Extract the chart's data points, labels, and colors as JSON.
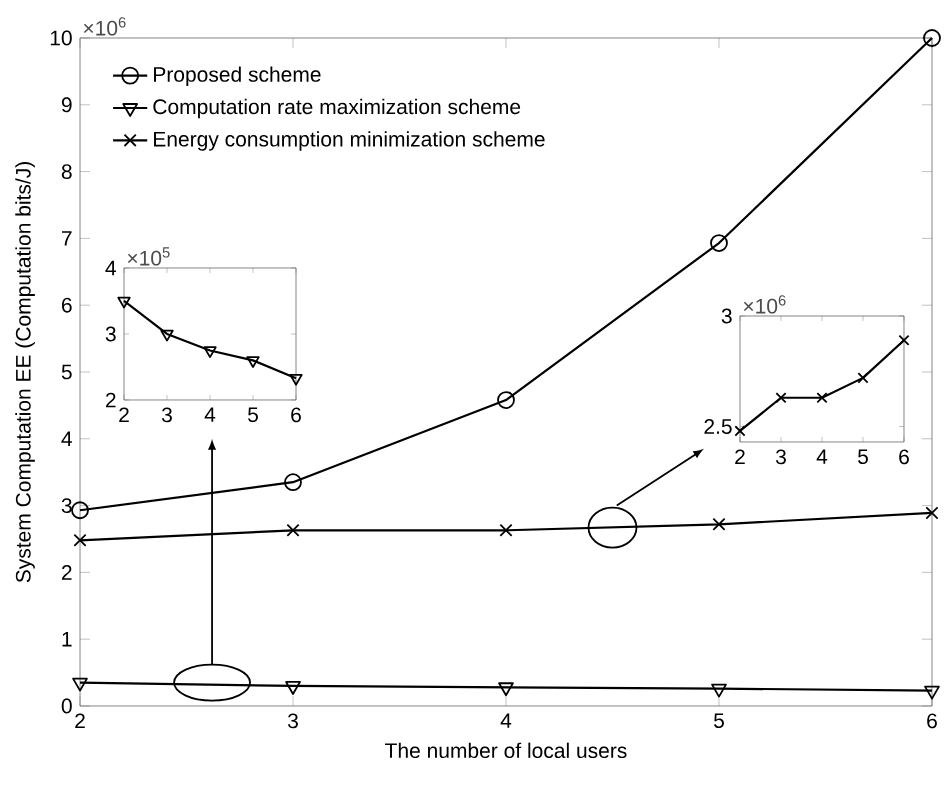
{
  "chart_data": [
    {
      "type": "line",
      "xlabel": "The number of local users",
      "ylabel": "System Computation EE (Computation bits/J)",
      "x": [
        2,
        3,
        4,
        5,
        6
      ],
      "xlim": [
        2,
        6
      ],
      "xticks": [
        2,
        3,
        4,
        5,
        6
      ],
      "ylim": [
        0,
        10
      ],
      "yticks": [
        0,
        1,
        2,
        3,
        4,
        5,
        6,
        7,
        8,
        9,
        10
      ],
      "legend": "top left",
      "annotations": [
        "×10$^{6}$"
      ],
      "series": [
        {
          "name": "Proposed scheme",
          "color": "#000000",
          "marker": "circle",
          "values": [
            2.93,
            3.35,
            4.58,
            6.93,
            10.0
          ]
        },
        {
          "name": "Computation rate maximization scheme",
          "color": "#000000",
          "marker": "triangle",
          "values": [
            0.35,
            0.3,
            0.28,
            0.26,
            0.23
          ]
        },
        {
          "name": "Energy consumption minimization scheme",
          "color": "#000000",
          "marker": "cross",
          "values": [
            2.48,
            2.63,
            2.63,
            2.72,
            2.89
          ]
        }
      ]
    },
    {
      "type": "line",
      "x": [
        2,
        3,
        4,
        5,
        6
      ],
      "xlim": [
        2,
        6
      ],
      "xticks": [
        2,
        3,
        4,
        5,
        6
      ],
      "ylim": [
        2,
        4
      ],
      "yticks": [
        2,
        3,
        4
      ],
      "annotations": [
        "×10$^{5}$"
      ],
      "series": [
        {
          "color": "#000000",
          "marker": "triangle",
          "values": [
            3.5,
            3.0,
            2.75,
            2.6,
            2.33
          ]
        }
      ]
    },
    {
      "type": "line",
      "x": [
        2,
        3,
        4,
        5,
        6
      ],
      "xlim": [
        2,
        6
      ],
      "xticks": [
        2,
        3,
        4,
        5,
        6
      ],
      "ylim": [
        2.43,
        3
      ],
      "yticks": [
        2.5,
        3
      ],
      "annotations": [
        "×10$^{6}$"
      ],
      "series": [
        {
          "color": "#000000",
          "marker": "cross",
          "values": [
            2.48,
            2.63,
            2.63,
            2.72,
            2.89
          ]
        }
      ]
    }
  ]
}
